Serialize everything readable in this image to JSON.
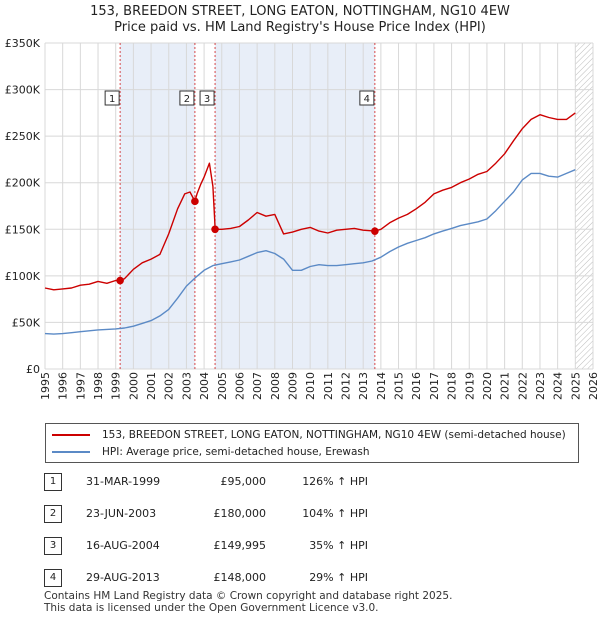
{
  "chart_data": {
    "type": "line",
    "title": "153, BREEDON STREET, LONG EATON, NOTTINGHAM, NG10 4EW",
    "subtitle": "Price paid vs. HM Land Registry's House Price Index (HPI)",
    "xlabel": "",
    "ylabel": "",
    "xlim": [
      1995,
      2026
    ],
    "ylim": [
      0,
      350000
    ],
    "y_ticks": [
      0,
      50000,
      100000,
      150000,
      200000,
      250000,
      300000,
      350000
    ],
    "y_tick_labels": [
      "£0",
      "£50K",
      "£100K",
      "£150K",
      "£200K",
      "£250K",
      "£300K",
      "£350K"
    ],
    "x_ticks": [
      1995,
      1996,
      1997,
      1998,
      1999,
      2000,
      2001,
      2002,
      2003,
      2004,
      2005,
      2006,
      2007,
      2008,
      2009,
      2010,
      2011,
      2012,
      2013,
      2014,
      2015,
      2016,
      2017,
      2018,
      2019,
      2020,
      2021,
      2022,
      2023,
      2024,
      2025,
      2026
    ],
    "grid": true,
    "sale_band_color": "#e8eef8",
    "future_hatch_from": 2025.0,
    "series": [
      {
        "name": "153, BREEDON STREET, LONG EATON, NOTTINGHAM, NG10 4EW (semi-detached house)",
        "color": "#cc0000",
        "x": [
          1995.0,
          1995.5,
          1996.0,
          1996.5,
          1997.0,
          1997.5,
          1998.0,
          1998.5,
          1999.0,
          1999.25,
          1999.5,
          2000.0,
          2000.5,
          2001.0,
          2001.5,
          2002.0,
          2002.5,
          2002.9,
          2003.2,
          2003.48,
          2003.6,
          2003.8,
          2004.0,
          2004.3,
          2004.5,
          2004.6,
          2004.62,
          2005.0,
          2005.5,
          2006.0,
          2006.5,
          2007.0,
          2007.5,
          2008.0,
          2008.5,
          2009.0,
          2009.5,
          2010.0,
          2010.5,
          2011.0,
          2011.5,
          2012.0,
          2012.5,
          2013.0,
          2013.66,
          2014.0,
          2014.5,
          2015.0,
          2015.5,
          2016.0,
          2016.5,
          2017.0,
          2017.5,
          2018.0,
          2018.5,
          2019.0,
          2019.5,
          2020.0,
          2020.5,
          2021.0,
          2021.5,
          2022.0,
          2022.5,
          2023.0,
          2023.5,
          2024.0,
          2024.5,
          2025.0
        ],
        "values": [
          87000,
          85000,
          86000,
          87000,
          90000,
          91000,
          94000,
          92000,
          95000,
          95000,
          97000,
          107000,
          114000,
          118000,
          123000,
          145000,
          172000,
          188000,
          190000,
          180000,
          188000,
          198000,
          206000,
          221000,
          196000,
          160000,
          149995,
          150000,
          151000,
          153000,
          160000,
          168000,
          164000,
          166000,
          145000,
          147000,
          150000,
          152000,
          148000,
          146000,
          149000,
          150000,
          151000,
          149000,
          148000,
          150000,
          157000,
          162000,
          166000,
          172000,
          179000,
          188000,
          192000,
          195000,
          200000,
          204000,
          209000,
          212000,
          221000,
          231000,
          245000,
          258000,
          268000,
          273000,
          270000,
          268000,
          268000,
          275000
        ]
      },
      {
        "name": "HPI: Average price, semi-detached house, Erewash",
        "color": "#5b8ac6",
        "x": [
          1995.0,
          1995.5,
          1996.0,
          1996.5,
          1997.0,
          1997.5,
          1998.0,
          1998.5,
          1999.0,
          1999.5,
          2000.0,
          2000.5,
          2001.0,
          2001.5,
          2002.0,
          2002.5,
          2003.0,
          2003.5,
          2004.0,
          2004.5,
          2005.0,
          2005.5,
          2006.0,
          2006.5,
          2007.0,
          2007.5,
          2008.0,
          2008.5,
          2009.0,
          2009.5,
          2010.0,
          2010.5,
          2011.0,
          2011.5,
          2012.0,
          2012.5,
          2013.0,
          2013.5,
          2014.0,
          2014.5,
          2015.0,
          2015.5,
          2016.0,
          2016.5,
          2017.0,
          2017.5,
          2018.0,
          2018.5,
          2019.0,
          2019.5,
          2020.0,
          2020.5,
          2021.0,
          2021.5,
          2022.0,
          2022.5,
          2023.0,
          2023.5,
          2024.0,
          2024.5,
          2025.0
        ],
        "values": [
          38000,
          37500,
          38000,
          39000,
          40000,
          41000,
          42000,
          42500,
          43000,
          44000,
          46000,
          49000,
          52000,
          57000,
          64000,
          76000,
          89000,
          98000,
          106000,
          111000,
          113000,
          115000,
          117000,
          121000,
          125000,
          127000,
          124000,
          118000,
          106000,
          106000,
          110000,
          112000,
          111000,
          111000,
          112000,
          113000,
          114000,
          116000,
          120000,
          126000,
          131000,
          135000,
          138000,
          141000,
          145000,
          148000,
          151000,
          154000,
          156000,
          158000,
          161000,
          170000,
          180000,
          190000,
          203000,
          210000,
          210000,
          207000,
          206000,
          210000,
          214000
        ]
      }
    ],
    "sales": [
      {
        "num": "1",
        "x": 1999.25,
        "price": 95000
      },
      {
        "num": "2",
        "x": 2003.48,
        "price": 180000
      },
      {
        "num": "3",
        "x": 2004.62,
        "price": 149995
      },
      {
        "num": "4",
        "x": 2013.66,
        "price": 148000
      }
    ]
  },
  "legend": {
    "property_label": "153, BREEDON STREET, LONG EATON, NOTTINGHAM, NG10 4EW (semi-detached house)",
    "hpi_label": "HPI: Average price, semi-detached house, Erewash"
  },
  "sales_table": [
    {
      "num": "1",
      "date": "31-MAR-1999",
      "price": "£95,000",
      "hpi": "126% ↑ HPI"
    },
    {
      "num": "2",
      "date": "23-JUN-2003",
      "price": "£180,000",
      "hpi": "104% ↑ HPI"
    },
    {
      "num": "3",
      "date": "16-AUG-2004",
      "price": "£149,995",
      "hpi": "35% ↑ HPI"
    },
    {
      "num": "4",
      "date": "29-AUG-2013",
      "price": "£148,000",
      "hpi": "29% ↑ HPI"
    }
  ],
  "footer": {
    "line1": "Contains HM Land Registry data © Crown copyright and database right 2025.",
    "line2": "This data is licensed under the Open Government Licence v3.0."
  }
}
